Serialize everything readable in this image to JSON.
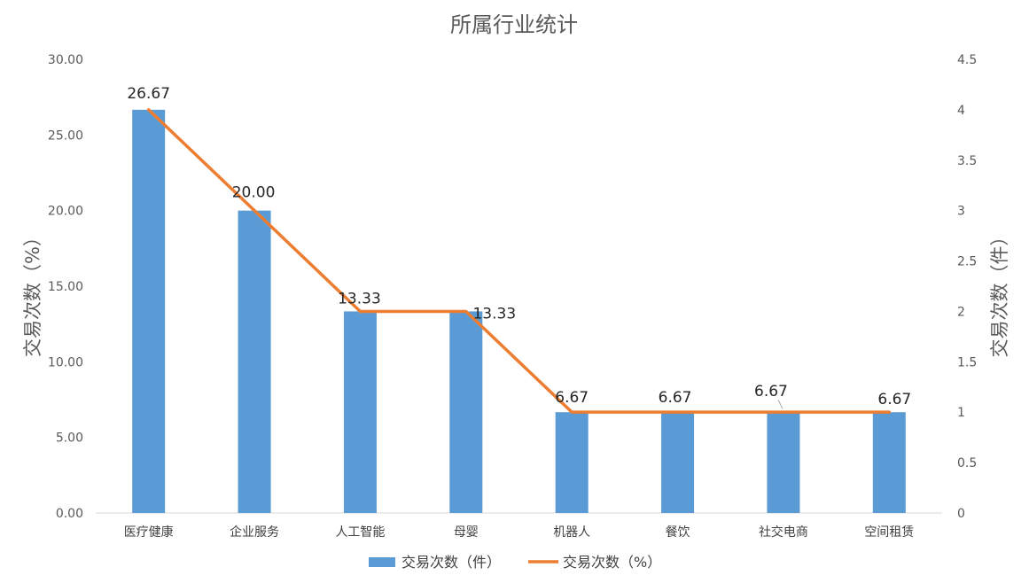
{
  "chart_data": {
    "type": "bar",
    "title": "所属行业统计",
    "categories": [
      "医疗健康",
      "企业服务",
      "人工智能",
      "母婴",
      "机器人",
      "餐饮",
      "社交电商",
      "空间租赁"
    ],
    "series": [
      {
        "name": "交易次数（件）",
        "type": "bar",
        "axis": "right",
        "values": [
          4,
          3,
          2,
          2,
          1,
          1,
          1,
          1
        ],
        "color": "#5b9bd5"
      },
      {
        "name": "交易次数（%）",
        "type": "line",
        "axis": "left",
        "values": [
          26.67,
          20.0,
          13.33,
          13.33,
          6.67,
          6.67,
          6.67,
          6.67
        ],
        "color": "#ed7d31"
      }
    ],
    "data_labels": [
      "26.67",
      "20.00",
      "13.33",
      "13.33",
      "6.67",
      "6.67",
      "6.67",
      "6.67"
    ],
    "left_axis": {
      "label": "交易次数（%）",
      "ylim": [
        0,
        30
      ],
      "ticks": [
        "0.00",
        "5.00",
        "10.00",
        "15.00",
        "20.00",
        "25.00",
        "30.00"
      ]
    },
    "right_axis": {
      "label": "交易次数（件）",
      "ylim": [
        0,
        4.5
      ],
      "ticks": [
        "0",
        "0.5",
        "1",
        "1.5",
        "2",
        "2.5",
        "3",
        "3.5",
        "4",
        "4.5"
      ]
    },
    "legend": {
      "position": "bottom",
      "entries": [
        "交易次数（件）",
        "交易次数（%）"
      ]
    },
    "grid": false
  }
}
